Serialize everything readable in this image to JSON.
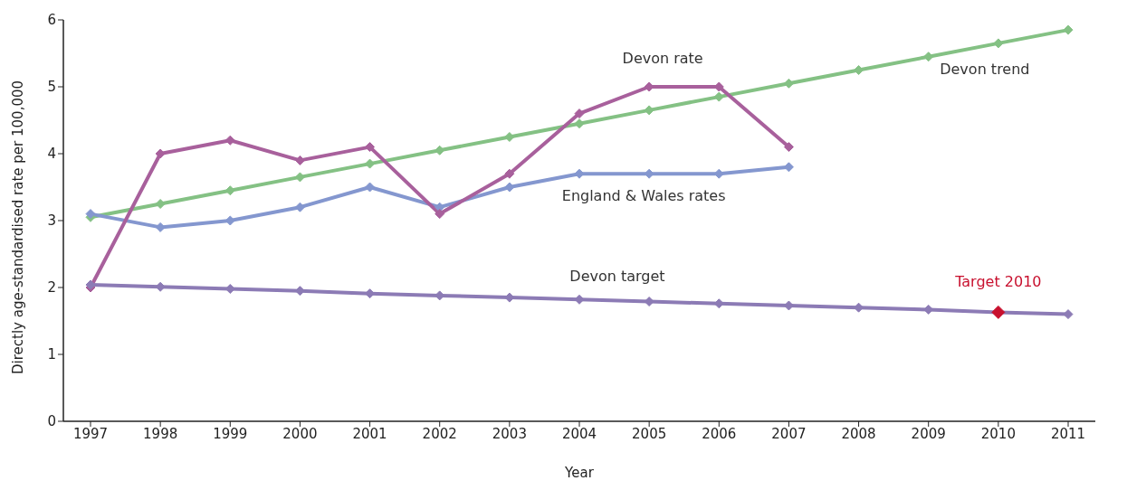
{
  "chart_data": {
    "type": "line",
    "xlabel": "Year",
    "ylabel": "Directly age-standardised rate per 100,000",
    "categories": [
      "1997",
      "1998",
      "1999",
      "2000",
      "2001",
      "2002",
      "2003",
      "2004",
      "2005",
      "2006",
      "2007",
      "2008",
      "2009",
      "2010",
      "2011"
    ],
    "series": [
      {
        "name": "Devon trend",
        "color": "#84c184",
        "values": [
          3.05,
          3.25,
          3.45,
          3.65,
          3.85,
          4.05,
          4.25,
          4.45,
          4.65,
          4.85,
          5.05,
          5.25,
          5.45,
          5.65,
          5.85
        ]
      },
      {
        "name": "England & Wales rates",
        "color": "#8497cf",
        "values": [
          3.1,
          2.9,
          3.0,
          3.2,
          3.5,
          3.2,
          3.5,
          3.7,
          3.7,
          3.7,
          3.8,
          null,
          null,
          null,
          null
        ]
      },
      {
        "name": "Devon rate",
        "color": "#a8609c",
        "values": [
          2.0,
          4.0,
          4.2,
          3.9,
          4.1,
          3.1,
          3.7,
          4.6,
          5.0,
          5.0,
          4.1,
          null,
          null,
          null,
          null
        ]
      },
      {
        "name": "Devon target",
        "color": "#8c7bb5",
        "values": [
          2.04,
          2.01,
          1.98,
          1.95,
          1.91,
          1.88,
          1.85,
          1.82,
          1.79,
          1.76,
          1.73,
          1.7,
          1.67,
          1.63,
          1.6
        ]
      },
      {
        "name": "Target 2010",
        "type": "scatter",
        "color": "#c8102e",
        "values": [
          null,
          null,
          null,
          null,
          null,
          null,
          null,
          null,
          null,
          null,
          null,
          null,
          null,
          1.63,
          null
        ]
      }
    ],
    "ylim": [
      0,
      6
    ],
    "yticks": [
      0,
      1,
      2,
      3,
      4,
      5,
      6
    ],
    "grid": false,
    "legend": false,
    "marker": "diamond",
    "line_style": "solid"
  }
}
